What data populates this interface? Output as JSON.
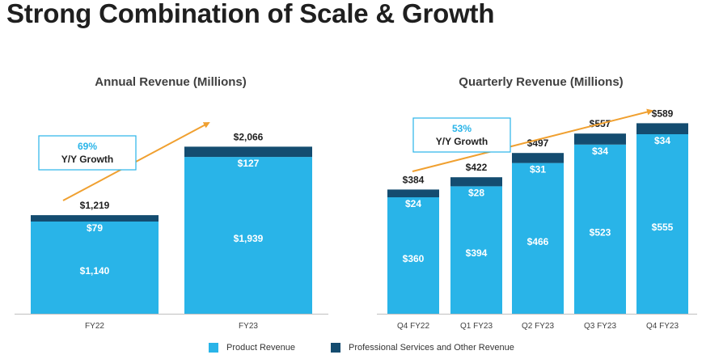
{
  "page": {
    "title": "Strong Combination of Scale & Growth"
  },
  "colors": {
    "product": "#29B4E8",
    "services": "#144C70",
    "arrow": "#F0A030",
    "callout_border": "#29B4E8",
    "callout_pct": "#29B4E8"
  },
  "legend": {
    "product_label": "Product Revenue",
    "services_label": "Professional Services and Other Revenue"
  },
  "chart_data": [
    {
      "type": "bar",
      "stacked": true,
      "title": "Annual Revenue (Millions)",
      "categories": [
        "FY22",
        "FY23"
      ],
      "series": [
        {
          "name": "Product Revenue",
          "values": [
            1140,
            1939
          ],
          "labels": [
            "$1,140",
            "$1,939"
          ]
        },
        {
          "name": "Professional Services and Other Revenue",
          "values": [
            79,
            127
          ],
          "labels": [
            "$79",
            "$127"
          ]
        }
      ],
      "totals": [
        1219,
        2066
      ],
      "total_labels": [
        "$1,219",
        "$2,066"
      ],
      "ylim": [
        0,
        2500
      ],
      "callout": {
        "pct": "69%",
        "text": "Y/Y Growth"
      }
    },
    {
      "type": "bar",
      "stacked": true,
      "title": "Quarterly Revenue (Millions)",
      "categories": [
        "Q4 FY22",
        "Q1 FY23",
        "Q2 FY23",
        "Q3 FY23",
        "Q4 FY23"
      ],
      "series": [
        {
          "name": "Product Revenue",
          "values": [
            360,
            394,
            466,
            523,
            555
          ],
          "labels": [
            "$360",
            "$394",
            "$466",
            "$523",
            "$555"
          ]
        },
        {
          "name": "Professional Services and Other Revenue",
          "values": [
            24,
            28,
            31,
            34,
            34
          ],
          "labels": [
            "$24",
            "$28",
            "$31",
            "$34",
            "$34"
          ]
        }
      ],
      "totals": [
        384,
        422,
        497,
        557,
        589
      ],
      "total_labels": [
        "$384",
        "$422",
        "$497",
        "$557",
        "$589"
      ],
      "ylim": [
        0,
        700
      ],
      "callout": {
        "pct": "53%",
        "text": "Y/Y Growth"
      }
    }
  ]
}
